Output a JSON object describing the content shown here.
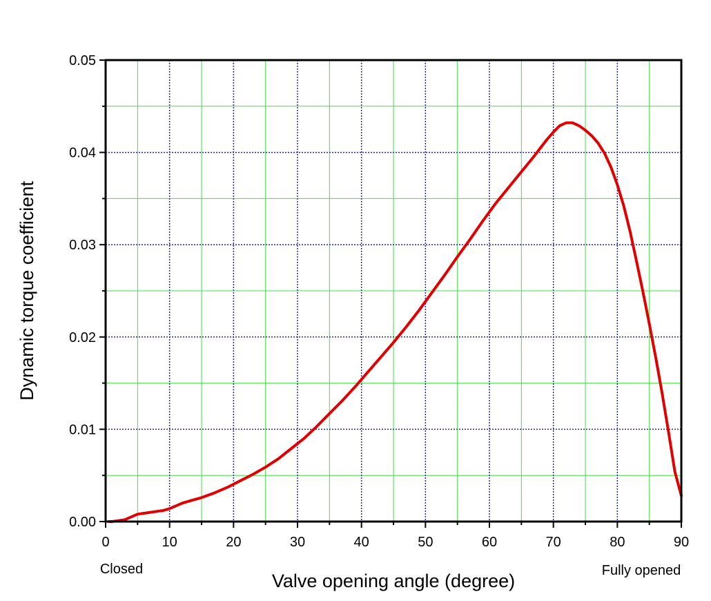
{
  "chart_data": {
    "type": "line",
    "title": "",
    "xlabel": "Valve opening angle (degree)",
    "ylabel": "Dynamic torque coefficient",
    "xlim": [
      0,
      90
    ],
    "ylim": [
      0,
      0.05
    ],
    "x_ticks": [
      0,
      10,
      20,
      30,
      40,
      50,
      60,
      70,
      80,
      90
    ],
    "x_tick_labels": [
      "0",
      "10",
      "20",
      "30",
      "40",
      "50",
      "60",
      "70",
      "80",
      "90"
    ],
    "y_ticks": [
      0,
      0.01,
      0.02,
      0.03,
      0.04,
      0.05
    ],
    "y_tick_labels": [
      "0.00",
      "0.01",
      "0.02",
      "0.03",
      "0.04",
      "0.05"
    ],
    "grid": true,
    "annotations": {
      "closed": "Closed",
      "fully_opened": "Fully opened"
    },
    "colors": {
      "line": "#e00000",
      "major_grid": "#2222bb",
      "minor_grid": "#44dd44"
    },
    "series": [
      {
        "x": [
          0.5,
          1,
          2,
          3,
          4,
          5,
          6,
          7,
          8,
          9,
          10,
          11,
          12,
          13,
          14,
          15,
          17,
          19,
          21,
          23,
          25,
          27,
          29,
          31,
          33,
          35,
          37,
          39,
          41,
          43,
          45,
          47,
          49,
          51,
          53,
          55,
          57,
          59,
          61,
          63,
          65,
          67,
          68,
          69,
          70,
          71,
          72,
          73,
          74,
          75,
          76,
          77,
          78,
          79,
          80,
          81,
          82,
          83,
          84,
          85,
          86,
          87,
          88,
          89,
          90
        ],
        "y": [
          0.0,
          0.0,
          0.0001,
          0.0002,
          0.0005,
          0.0008,
          0.0009,
          0.001,
          0.0011,
          0.0012,
          0.0014,
          0.0017,
          0.002,
          0.0022,
          0.0024,
          0.0026,
          0.0031,
          0.0037,
          0.0044,
          0.0051,
          0.0059,
          0.0068,
          0.0079,
          0.009,
          0.0103,
          0.0117,
          0.0131,
          0.0146,
          0.0162,
          0.0178,
          0.0194,
          0.0211,
          0.0229,
          0.0248,
          0.0267,
          0.0287,
          0.0306,
          0.0326,
          0.0345,
          0.0362,
          0.0379,
          0.0396,
          0.0405,
          0.0414,
          0.0422,
          0.0429,
          0.0432,
          0.0432,
          0.0429,
          0.0424,
          0.0418,
          0.041,
          0.0399,
          0.0384,
          0.0365,
          0.0342,
          0.0314,
          0.0282,
          0.0249,
          0.0214,
          0.0178,
          0.0139,
          0.0097,
          0.0054,
          0.0028
        ]
      }
    ]
  }
}
